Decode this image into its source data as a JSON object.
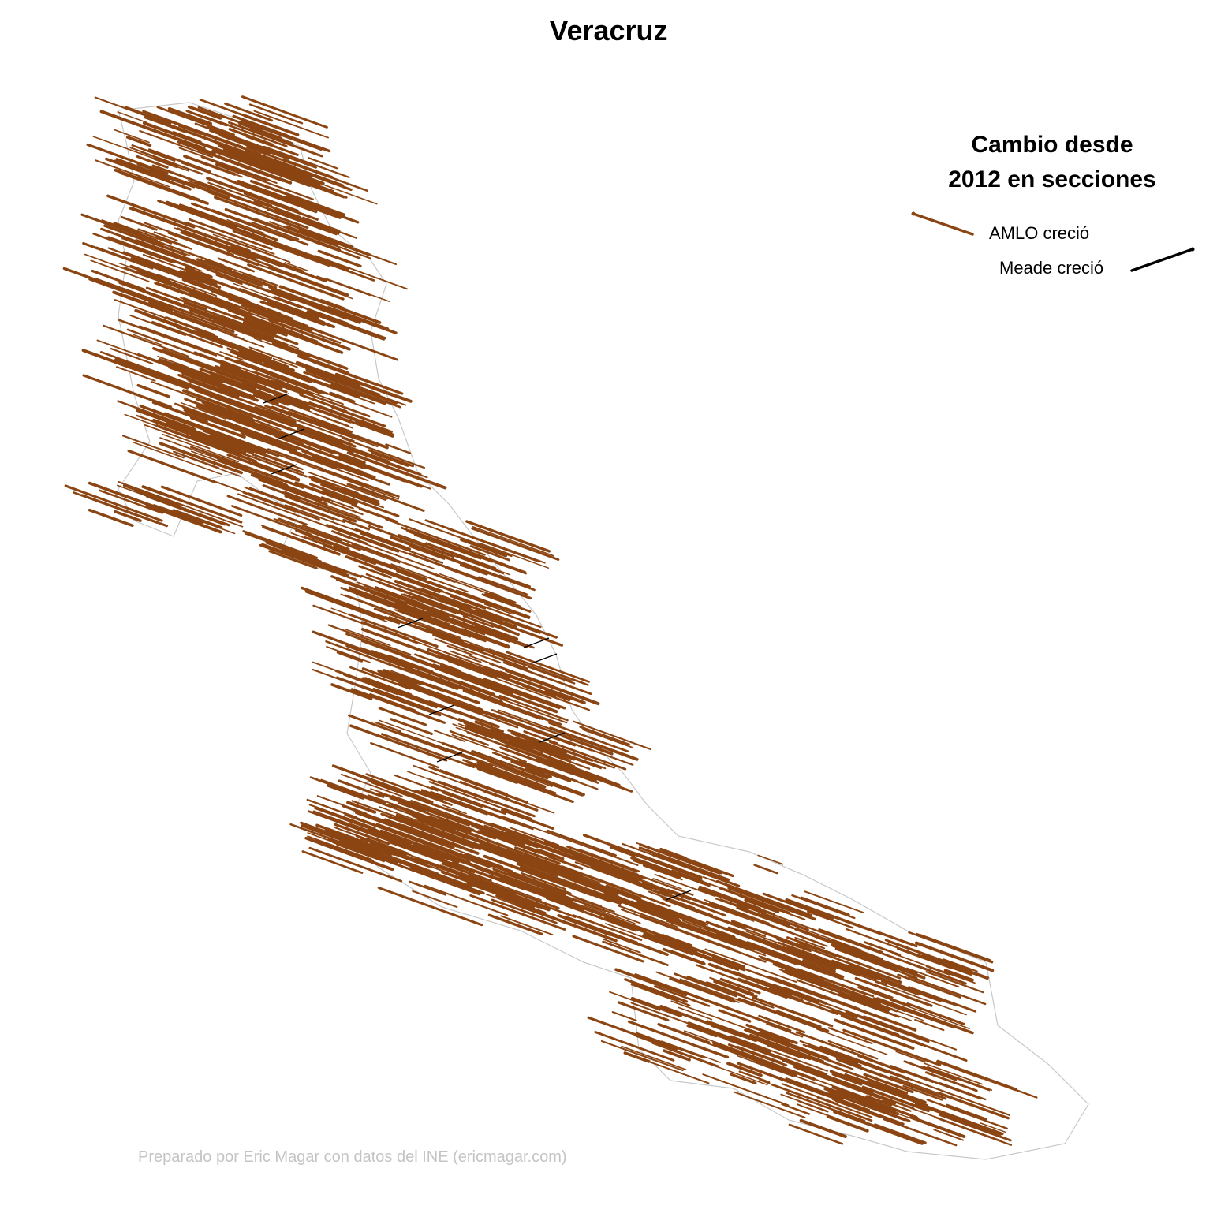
{
  "title": "Veracruz",
  "legend": {
    "title_line1": "Cambio desde",
    "title_line2": "2012 en secciones",
    "items": [
      {
        "label": "AMLO creció",
        "color": "#8B4513"
      },
      {
        "label": "Meade creció",
        "color": "#000000"
      }
    ]
  },
  "credit": "Preparado por Eric Magar con datos del INE (ericmagar.com)",
  "colors": {
    "amlo": "#8B4513",
    "meade": "#000000",
    "boundary": "#c8c8c8",
    "credit": "#c4c4c4"
  }
}
